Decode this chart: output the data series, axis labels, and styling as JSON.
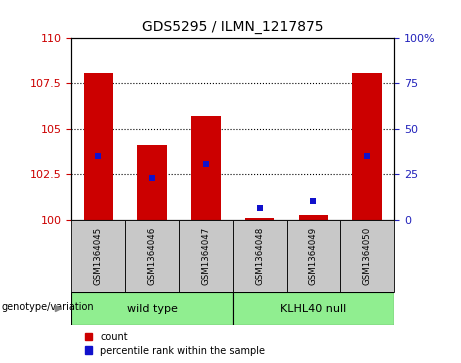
{
  "title": "GDS5295 / ILMN_1217875",
  "samples": [
    "GSM1364045",
    "GSM1364046",
    "GSM1364047",
    "GSM1364048",
    "GSM1364049",
    "GSM1364050"
  ],
  "red_values": [
    108.1,
    104.1,
    105.7,
    100.1,
    100.25,
    108.1
  ],
  "blue_values": [
    103.5,
    102.3,
    103.05,
    100.65,
    101.0,
    103.5
  ],
  "ylim_left": [
    100,
    110
  ],
  "ylim_right": [
    0,
    100
  ],
  "yticks_left": [
    100,
    102.5,
    105,
    107.5,
    110
  ],
  "ytick_labels_left": [
    "100",
    "102.5",
    "105",
    "107.5",
    "110"
  ],
  "yticks_right": [
    0,
    25,
    50,
    75,
    100
  ],
  "ytick_labels_right": [
    "0",
    "25",
    "50",
    "75",
    "100%"
  ],
  "bar_color": "#CC0000",
  "dot_color": "#1111CC",
  "bg_color": "#C8C8C8",
  "left_tick_color": "#CC0000",
  "right_tick_color": "#2222BB",
  "bar_width": 0.55,
  "dot_size": 5,
  "group_wt_label": "wild type",
  "group_kl_label": "KLHL40 null",
  "group_color": "#90EE90",
  "legend_label_red": "count",
  "legend_label_blue": "percentile rank within the sample",
  "geno_label": "genotype/variation"
}
